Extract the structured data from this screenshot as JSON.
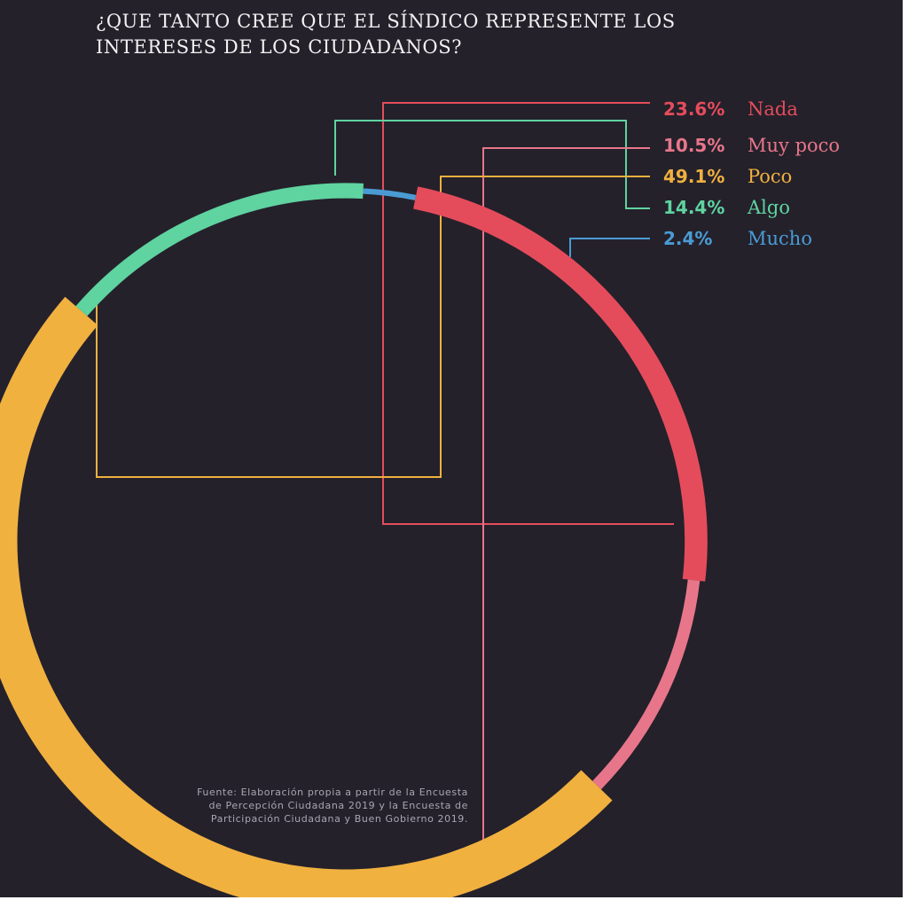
{
  "title": "¿QUE TANTO CREE QUE EL SÍNDICO REPRESENTE LOS INTERESES DE LOS CIUDADANOS?",
  "source": "Fuente: Elaboración propia a partir de la Encuesta de Percepción Ciudadana 2019 y la Encuesta de Participación Ciudadana y Buen Gobierno 2019.",
  "colors": {
    "background": "#24212b",
    "nada": "#e54c5b",
    "muy_poco": "#e8768a",
    "poco": "#f1b13f",
    "algo": "#5fd3a0",
    "mucho": "#4a9bd4"
  },
  "chart_data": {
    "type": "pie",
    "variant": "donut-radial",
    "title": "¿QUE TANTO CREE QUE EL SÍNDICO REPRESENTE LOS INTERESES DE LOS CIUDADANOS?",
    "categories": [
      "Nada",
      "Muy poco",
      "Poco",
      "Algo",
      "Mucho"
    ],
    "values": [
      23.6,
      10.5,
      49.1,
      14.4,
      2.4
    ],
    "value_labels": [
      "23.6%",
      "10.5%",
      "49.1%",
      "14.4%",
      "2.4%"
    ],
    "unit": "%",
    "legend_position": "top-right"
  }
}
